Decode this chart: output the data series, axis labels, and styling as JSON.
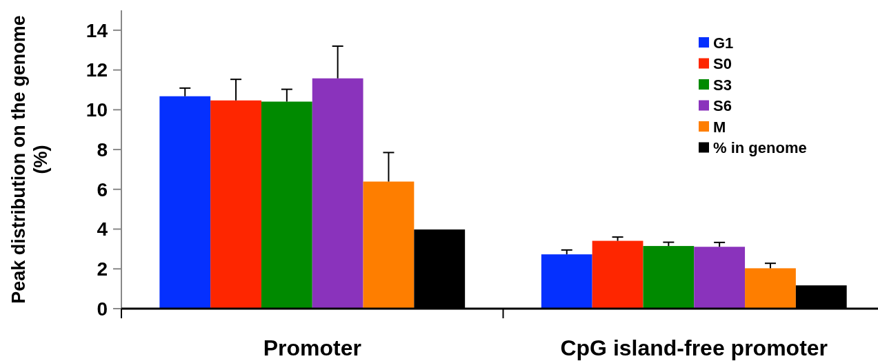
{
  "chart_data": {
    "type": "bar",
    "ylabel": "Peak distribution on the genome (%)",
    "categories": [
      "Promoter",
      "CpG island-free promoter"
    ],
    "ylim": [
      0,
      15
    ],
    "yticks": [
      0,
      2,
      4,
      6,
      8,
      10,
      12,
      14
    ],
    "legend": "top right",
    "grid": false,
    "series": [
      {
        "name": "G1",
        "color": "#0530fe",
        "values": [
          10.68,
          2.73
        ],
        "errors": [
          [
            10.68,
            11.09
          ],
          [
            2.73,
            2.95
          ]
        ]
      },
      {
        "name": "S0",
        "color": "#fe2600",
        "values": [
          10.47,
          3.41
        ],
        "errors": [
          [
            10.47,
            11.53
          ],
          [
            3.41,
            3.6
          ]
        ]
      },
      {
        "name": "S3",
        "color": "#008a00",
        "values": [
          10.41,
          3.15
        ],
        "errors": [
          [
            10.41,
            11.03
          ],
          [
            3.15,
            3.34
          ]
        ]
      },
      {
        "name": "S6",
        "color": "#8a33bc",
        "values": [
          11.58,
          3.11
        ],
        "errors": [
          [
            11.58,
            13.2
          ],
          [
            3.11,
            3.33
          ]
        ]
      },
      {
        "name": "M",
        "color": "#fe7e00",
        "values": [
          6.39,
          2.03
        ],
        "errors": [
          [
            6.39,
            7.85
          ],
          [
            2.03,
            2.28
          ]
        ]
      },
      {
        "name": "% in genome",
        "color": "#000000",
        "values": [
          3.98,
          1.17
        ],
        "errors": [
          null,
          null
        ]
      }
    ]
  }
}
